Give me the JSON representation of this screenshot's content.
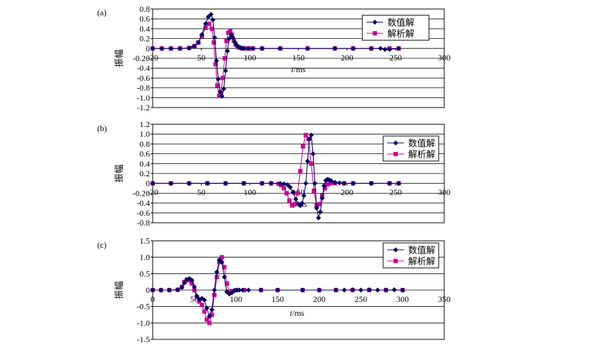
{
  "chart_data": [
    {
      "type": "line",
      "panel_label": "(a)",
      "ylabel": "振幅",
      "xlabel": "t/ms",
      "xlim": [
        -20,
        300
      ],
      "ylim": [
        -1.2,
        0.8
      ],
      "x_ticks": [
        "-20",
        "50",
        "100",
        "150",
        "200",
        "250",
        "300"
      ],
      "y_ticks": [
        "0.8",
        "0.6",
        "0.4",
        "0.2",
        "0",
        "-0.20",
        "-0.4",
        "-0.6",
        "-0.8",
        "-1.0",
        "-1.2"
      ],
      "grid": true,
      "legend_position": "top-right",
      "series": [
        {
          "name": "数值解",
          "color": "#000066",
          "marker": "diamond",
          "x": [
            -20,
            -10,
            0,
            10,
            20,
            25,
            30,
            34,
            38,
            41,
            44,
            46,
            48,
            50,
            52,
            54,
            56,
            58,
            60,
            62,
            64,
            66,
            68,
            70,
            72,
            74,
            76,
            78,
            80,
            85,
            90,
            100,
            120,
            150,
            180,
            200,
            220,
            230,
            235,
            240,
            250
          ],
          "y": [
            0,
            0,
            0,
            0,
            0.01,
            0.04,
            0.12,
            0.28,
            0.5,
            0.64,
            0.69,
            0.58,
            0.22,
            -0.25,
            -0.62,
            -0.88,
            -0.97,
            -0.82,
            -0.45,
            -0.05,
            0.2,
            0.28,
            0.22,
            0.13,
            0.07,
            0.03,
            0.01,
            0.005,
            0,
            0,
            0,
            0,
            0,
            0,
            0,
            0,
            0,
            0,
            -0.02,
            -0.02,
            0
          ]
        },
        {
          "name": "解析解",
          "color": "#cc0099",
          "marker": "square",
          "x": [
            -20,
            -10,
            0,
            10,
            20,
            26,
            30,
            34,
            38,
            42,
            45,
            47,
            49,
            51,
            53,
            55,
            57,
            59,
            61,
            63,
            65,
            67,
            69,
            71,
            73,
            75,
            78,
            82,
            86,
            90,
            100,
            120,
            150,
            180,
            200,
            220,
            240,
            250
          ],
          "y": [
            0,
            0,
            0,
            0,
            0.01,
            0.05,
            0.12,
            0.25,
            0.42,
            0.5,
            0.4,
            0.12,
            -0.32,
            -0.75,
            -0.96,
            -0.9,
            -0.6,
            -0.2,
            0.15,
            0.32,
            0.35,
            0.28,
            0.16,
            0.08,
            0.04,
            0.02,
            0.005,
            0,
            0,
            0,
            0,
            0,
            0,
            0,
            0,
            0,
            0,
            0
          ]
        }
      ]
    },
    {
      "type": "line",
      "panel_label": "(b)",
      "ylabel": "振幅",
      "xlabel": "t/ms",
      "xlim": [
        -20,
        300
      ],
      "ylim": [
        -0.8,
        1.2
      ],
      "x_ticks": [
        "-20",
        "50",
        "100",
        "150",
        "200",
        "250",
        "300"
      ],
      "y_ticks": [
        "1.2",
        "1.0",
        "0.8",
        "0.6",
        "0.4",
        "0.2",
        "0",
        "-0.20",
        "-0.4",
        "-0.6",
        "-0.8"
      ],
      "grid": true,
      "legend_position": "top-right",
      "series": [
        {
          "name": "数值解",
          "color": "#000066",
          "marker": "diamond",
          "x": [
            -20,
            0,
            20,
            40,
            60,
            80,
            100,
            110,
            120,
            124,
            128,
            131,
            134,
            137,
            140,
            142,
            144,
            146,
            148,
            150,
            152,
            154,
            156,
            158,
            160,
            162,
            164,
            166,
            168,
            170,
            172,
            174,
            176,
            180,
            185,
            190,
            200,
            220,
            240,
            250
          ],
          "y": [
            0,
            0,
            0,
            0,
            0,
            0,
            0,
            0,
            0,
            -0.01,
            -0.03,
            -0.08,
            -0.18,
            -0.32,
            -0.42,
            -0.45,
            -0.4,
            -0.25,
            0,
            0.45,
            0.9,
            0.98,
            0.6,
            0,
            -0.5,
            -0.7,
            -0.58,
            -0.3,
            -0.05,
            0.06,
            0.08,
            0.07,
            0.05,
            0.02,
            0.01,
            0,
            0,
            0,
            0,
            0
          ]
        },
        {
          "name": "解析解",
          "color": "#cc0099",
          "marker": "square",
          "x": [
            -20,
            0,
            20,
            40,
            60,
            80,
            100,
            110,
            118,
            121,
            124,
            127,
            130,
            133,
            136,
            139,
            142,
            145,
            148,
            151,
            154,
            157,
            160,
            163,
            166,
            169,
            172,
            175,
            180,
            190,
            200,
            220,
            240,
            250
          ],
          "y": [
            0,
            0,
            0,
            0,
            0,
            0,
            0,
            0,
            -0.01,
            -0.04,
            -0.1,
            -0.2,
            -0.35,
            -0.45,
            -0.42,
            -0.2,
            0.25,
            0.75,
            0.98,
            0.9,
            0.4,
            -0.15,
            -0.45,
            -0.42,
            -0.25,
            -0.1,
            -0.02,
            0,
            0,
            0,
            0,
            0,
            0,
            0
          ]
        }
      ]
    },
    {
      "type": "line",
      "panel_label": "(c)",
      "ylabel": "振幅",
      "xlabel": "t/ms",
      "xlim": [
        0,
        350
      ],
      "ylim": [
        -1.5,
        1.5
      ],
      "x_ticks": [
        "0",
        "50",
        "100",
        "150",
        "200",
        "250",
        "300",
        "350"
      ],
      "y_ticks": [
        "1.5",
        "1.0",
        "0.5",
        "0",
        "-0.5",
        "-1.0",
        "-1.5"
      ],
      "grid": true,
      "legend_position": "top-right",
      "series": [
        {
          "name": "数值解",
          "color": "#000066",
          "marker": "diamond",
          "x": [
            0,
            10,
            20,
            30,
            35,
            38,
            41,
            44,
            47,
            50,
            53,
            56,
            59,
            62,
            65,
            68,
            71,
            74,
            77,
            80,
            83,
            86,
            89,
            92,
            95,
            98,
            101,
            104,
            108,
            115,
            130,
            150,
            180,
            200,
            220,
            230,
            240,
            250,
            260,
            270,
            280,
            290,
            300
          ],
          "y": [
            0,
            0,
            0,
            0.01,
            0.08,
            0.22,
            0.32,
            0.35,
            0.3,
            0.1,
            -0.18,
            -0.28,
            -0.25,
            -0.3,
            -0.55,
            -0.8,
            -0.6,
            0,
            0.55,
            0.92,
            0.85,
            0.4,
            -0.05,
            -0.12,
            -0.08,
            -0.02,
            0,
            0,
            0,
            0,
            0,
            0,
            0,
            0,
            0,
            0,
            0.01,
            0,
            0.01,
            0,
            0,
            0.01,
            0
          ]
        },
        {
          "name": "解析解",
          "color": "#cc0099",
          "marker": "square",
          "x": [
            0,
            10,
            20,
            30,
            35,
            38,
            41,
            44,
            47,
            50,
            53,
            56,
            59,
            62,
            65,
            68,
            71,
            74,
            77,
            80,
            83,
            86,
            89,
            92,
            95,
            100,
            110,
            130,
            150,
            180,
            200,
            220,
            240,
            260,
            280,
            300
          ],
          "y": [
            0,
            0,
            0,
            0.01,
            0.1,
            0.25,
            0.32,
            0.3,
            0.2,
            0,
            -0.22,
            -0.35,
            -0.45,
            -0.65,
            -0.9,
            -1.0,
            -0.75,
            -0.15,
            0.4,
            0.85,
            1.0,
            0.7,
            0.2,
            -0.05,
            -0.03,
            0,
            0,
            0,
            0,
            0,
            0,
            0,
            0,
            0,
            0,
            0
          ]
        }
      ]
    }
  ]
}
